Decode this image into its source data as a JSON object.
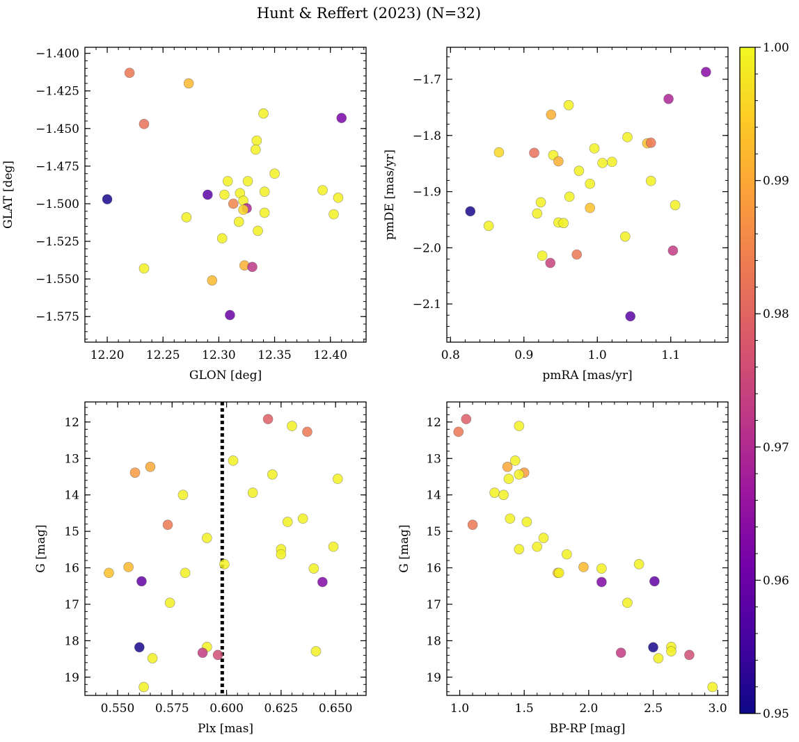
{
  "chart_data": {
    "title": "Hunt & Reffert (2023) (N=32)",
    "colorbar": {
      "min": 0.95,
      "max": 1.0,
      "ticks": [
        0.95,
        0.96,
        0.97,
        0.98,
        0.99,
        1.0
      ],
      "tick_labels": [
        "0.95",
        "0.96",
        "0.97",
        "0.98",
        "0.99",
        "1.00"
      ],
      "colormap": "plasma",
      "stops": [
        "#0d0887",
        "#46039f",
        "#7201a8",
        "#9c179e",
        "#bd3786",
        "#d8576b",
        "#ed7953",
        "#fb9f3a",
        "#fdca26",
        "#f0f921"
      ]
    },
    "panels": [
      {
        "type": "scatter",
        "xlabel": "GLON [deg]",
        "ylabel": "GLAT [deg]",
        "xlim": [
          12.18,
          12.432
        ],
        "ylim": [
          -1.592,
          -1.396
        ],
        "xticks": [
          12.2,
          12.25,
          12.3,
          12.35,
          12.4
        ],
        "xtick_labels": [
          "12.20",
          "12.25",
          "12.30",
          "12.35",
          "12.40"
        ],
        "yticks": [
          -1.4,
          -1.425,
          -1.45,
          -1.475,
          -1.5,
          -1.525,
          -1.55,
          -1.575
        ],
        "ytick_labels": [
          "−1.400",
          "−1.425",
          "−1.450",
          "−1.475",
          "−1.500",
          "−1.525",
          "−1.550",
          "−1.575"
        ],
        "invert_y": false,
        "points": [
          {
            "x": 12.22,
            "y": -1.413,
            "c": 0.983
          },
          {
            "x": 12.273,
            "y": -1.42,
            "c": 0.992
          },
          {
            "x": 12.233,
            "y": -1.447,
            "c": 0.982
          },
          {
            "x": 12.41,
            "y": -1.443,
            "c": 0.962
          },
          {
            "x": 12.34,
            "y": -1.44,
            "c": 0.999
          },
          {
            "x": 12.334,
            "y": -1.458,
            "c": 0.999
          },
          {
            "x": 12.333,
            "y": -1.464,
            "c": 0.999
          },
          {
            "x": 12.2,
            "y": -1.497,
            "c": 0.951
          },
          {
            "x": 12.29,
            "y": -1.494,
            "c": 0.958
          },
          {
            "x": 12.308,
            "y": -1.485,
            "c": 0.999
          },
          {
            "x": 12.326,
            "y": -1.485,
            "c": 0.999
          },
          {
            "x": 12.35,
            "y": -1.48,
            "c": 0.999
          },
          {
            "x": 12.305,
            "y": -1.494,
            "c": 0.999
          },
          {
            "x": 12.319,
            "y": -1.493,
            "c": 0.999
          },
          {
            "x": 12.341,
            "y": -1.492,
            "c": 0.999
          },
          {
            "x": 12.393,
            "y": -1.491,
            "c": 0.999
          },
          {
            "x": 12.407,
            "y": -1.496,
            "c": 0.999
          },
          {
            "x": 12.322,
            "y": -1.498,
            "c": 0.999
          },
          {
            "x": 12.313,
            "y": -1.5,
            "c": 0.985
          },
          {
            "x": 12.325,
            "y": -1.503,
            "c": 0.969
          },
          {
            "x": 12.322,
            "y": -1.504,
            "c": 0.996
          },
          {
            "x": 12.341,
            "y": -1.506,
            "c": 0.999
          },
          {
            "x": 12.403,
            "y": -1.507,
            "c": 0.999
          },
          {
            "x": 12.271,
            "y": -1.509,
            "c": 0.999
          },
          {
            "x": 12.318,
            "y": -1.512,
            "c": 0.999
          },
          {
            "x": 12.335,
            "y": -1.518,
            "c": 0.999
          },
          {
            "x": 12.303,
            "y": -1.523,
            "c": 0.999
          },
          {
            "x": 12.323,
            "y": -1.541,
            "c": 0.991
          },
          {
            "x": 12.33,
            "y": -1.542,
            "c": 0.972
          },
          {
            "x": 12.233,
            "y": -1.543,
            "c": 0.999
          },
          {
            "x": 12.294,
            "y": -1.551,
            "c": 0.992
          },
          {
            "x": 12.31,
            "y": -1.574,
            "c": 0.96
          }
        ]
      },
      {
        "type": "scatter",
        "xlabel": "pmRA [mas/yr]",
        "ylabel": "pmDE [mas/yr]",
        "xlim": [
          0.795,
          1.178
        ],
        "ylim": [
          -2.168,
          -1.643
        ],
        "xticks": [
          0.8,
          0.9,
          1.0,
          1.1
        ],
        "xtick_labels": [
          "0.8",
          "0.9",
          "1.0",
          "1.1"
        ],
        "yticks": [
          -1.7,
          -1.8,
          -1.9,
          -2.0,
          -2.1
        ],
        "ytick_labels": [
          "−1.7",
          "−1.8",
          "−1.9",
          "−2.0",
          "−2.1"
        ],
        "invert_y": false,
        "points": [
          {
            "x": 1.148,
            "y": -1.687,
            "c": 0.964
          },
          {
            "x": 1.097,
            "y": -1.735,
            "c": 0.969
          },
          {
            "x": 0.961,
            "y": -1.746,
            "c": 0.999
          },
          {
            "x": 0.937,
            "y": -1.763,
            "c": 0.991
          },
          {
            "x": 1.041,
            "y": -1.803,
            "c": 0.999
          },
          {
            "x": 1.068,
            "y": -1.814,
            "c": 0.993
          },
          {
            "x": 1.073,
            "y": -1.813,
            "c": 0.983
          },
          {
            "x": 0.866,
            "y": -1.83,
            "c": 0.996
          },
          {
            "x": 0.914,
            "y": -1.831,
            "c": 0.982
          },
          {
            "x": 0.94,
            "y": -1.835,
            "c": 0.999
          },
          {
            "x": 0.996,
            "y": -1.823,
            "c": 0.999
          },
          {
            "x": 0.947,
            "y": -1.846,
            "c": 0.991
          },
          {
            "x": 1.007,
            "y": -1.849,
            "c": 0.999
          },
          {
            "x": 1.02,
            "y": -1.847,
            "c": 0.999
          },
          {
            "x": 0.975,
            "y": -1.863,
            "c": 0.999
          },
          {
            "x": 1.073,
            "y": -1.881,
            "c": 0.999
          },
          {
            "x": 0.99,
            "y": -1.886,
            "c": 0.999
          },
          {
            "x": 0.962,
            "y": -1.909,
            "c": 0.999
          },
          {
            "x": 0.923,
            "y": -1.919,
            "c": 0.999
          },
          {
            "x": 1.106,
            "y": -1.924,
            "c": 0.999
          },
          {
            "x": 0.99,
            "y": -1.929,
            "c": 0.993
          },
          {
            "x": 0.827,
            "y": -1.935,
            "c": 0.951
          },
          {
            "x": 0.918,
            "y": -1.939,
            "c": 0.999
          },
          {
            "x": 0.947,
            "y": -1.955,
            "c": 0.999
          },
          {
            "x": 0.954,
            "y": -1.956,
            "c": 0.999
          },
          {
            "x": 0.852,
            "y": -1.961,
            "c": 0.999
          },
          {
            "x": 1.038,
            "y": -1.98,
            "c": 0.999
          },
          {
            "x": 1.103,
            "y": -2.005,
            "c": 0.973
          },
          {
            "x": 0.925,
            "y": -2.014,
            "c": 0.999
          },
          {
            "x": 0.972,
            "y": -2.012,
            "c": 0.983
          },
          {
            "x": 0.936,
            "y": -2.027,
            "c": 0.974
          },
          {
            "x": 1.045,
            "y": -2.122,
            "c": 0.958
          }
        ]
      },
      {
        "type": "scatter",
        "xlabel": "Plx [mas]",
        "ylabel": "G [mag]",
        "xlim": [
          0.535,
          0.664
        ],
        "ylim": [
          19.5,
          11.45
        ],
        "xticks": [
          0.55,
          0.575,
          0.6,
          0.625,
          0.65
        ],
        "xtick_labels": [
          "0.550",
          "0.575",
          "0.600",
          "0.625",
          "0.650"
        ],
        "yticks": [
          12,
          13,
          14,
          15,
          16,
          17,
          18,
          19
        ],
        "ytick_labels": [
          "12",
          "13",
          "14",
          "15",
          "16",
          "17",
          "18",
          "19"
        ],
        "invert_y": true,
        "vline": {
          "x": 0.598,
          "style": "dotted",
          "color": "#000000"
        },
        "points": [
          {
            "x": 0.619,
            "y": 11.92,
            "c": 0.979
          },
          {
            "x": 0.63,
            "y": 12.11,
            "c": 0.999
          },
          {
            "x": 0.637,
            "y": 12.27,
            "c": 0.983
          },
          {
            "x": 0.603,
            "y": 13.06,
            "c": 0.999
          },
          {
            "x": 0.565,
            "y": 13.23,
            "c": 0.99
          },
          {
            "x": 0.558,
            "y": 13.39,
            "c": 0.988
          },
          {
            "x": 0.621,
            "y": 13.44,
            "c": 0.999
          },
          {
            "x": 0.651,
            "y": 13.56,
            "c": 0.999
          },
          {
            "x": 0.612,
            "y": 13.94,
            "c": 0.999
          },
          {
            "x": 0.58,
            "y": 14.0,
            "c": 0.999
          },
          {
            "x": 0.635,
            "y": 14.65,
            "c": 0.999
          },
          {
            "x": 0.628,
            "y": 14.74,
            "c": 0.999
          },
          {
            "x": 0.573,
            "y": 14.82,
            "c": 0.983
          },
          {
            "x": 0.591,
            "y": 15.18,
            "c": 0.999
          },
          {
            "x": 0.649,
            "y": 15.42,
            "c": 0.999
          },
          {
            "x": 0.625,
            "y": 15.49,
            "c": 0.999
          },
          {
            "x": 0.625,
            "y": 15.63,
            "c": 0.999
          },
          {
            "x": 0.599,
            "y": 15.9,
            "c": 0.999
          },
          {
            "x": 0.555,
            "y": 15.98,
            "c": 0.992
          },
          {
            "x": 0.64,
            "y": 16.02,
            "c": 0.999
          },
          {
            "x": 0.546,
            "y": 16.14,
            "c": 0.993
          },
          {
            "x": 0.581,
            "y": 16.14,
            "c": 0.999
          },
          {
            "x": 0.561,
            "y": 16.37,
            "c": 0.959
          },
          {
            "x": 0.644,
            "y": 16.39,
            "c": 0.963
          },
          {
            "x": 0.574,
            "y": 16.96,
            "c": 0.999
          },
          {
            "x": 0.56,
            "y": 18.18,
            "c": 0.951
          },
          {
            "x": 0.591,
            "y": 18.17,
            "c": 0.999
          },
          {
            "x": 0.641,
            "y": 18.29,
            "c": 0.999
          },
          {
            "x": 0.589,
            "y": 18.33,
            "c": 0.973
          },
          {
            "x": 0.596,
            "y": 18.39,
            "c": 0.976
          },
          {
            "x": 0.566,
            "y": 18.48,
            "c": 0.999
          },
          {
            "x": 0.562,
            "y": 19.27,
            "c": 0.999
          }
        ]
      },
      {
        "type": "scatter",
        "xlabel": "BP-RP [mag]",
        "ylabel": "G [mag]",
        "xlim": [
          0.9,
          3.08
        ],
        "ylim": [
          19.5,
          11.45
        ],
        "xticks": [
          1.0,
          1.5,
          2.0,
          2.5,
          3.0
        ],
        "xtick_labels": [
          "1.0",
          "1.5",
          "2.0",
          "2.5",
          "3.0"
        ],
        "yticks": [
          12,
          13,
          14,
          15,
          16,
          17,
          18,
          19
        ],
        "ytick_labels": [
          "12",
          "13",
          "14",
          "15",
          "16",
          "17",
          "18",
          "19"
        ],
        "invert_y": true,
        "points": [
          {
            "x": 1.05,
            "y": 11.92,
            "c": 0.979
          },
          {
            "x": 1.46,
            "y": 12.11,
            "c": 0.999
          },
          {
            "x": 0.99,
            "y": 12.27,
            "c": 0.983
          },
          {
            "x": 1.43,
            "y": 13.06,
            "c": 0.999
          },
          {
            "x": 1.37,
            "y": 13.23,
            "c": 0.99
          },
          {
            "x": 1.5,
            "y": 13.39,
            "c": 0.988
          },
          {
            "x": 1.46,
            "y": 13.44,
            "c": 0.999
          },
          {
            "x": 1.38,
            "y": 13.56,
            "c": 0.999
          },
          {
            "x": 1.27,
            "y": 13.94,
            "c": 0.999
          },
          {
            "x": 1.34,
            "y": 14.0,
            "c": 0.999
          },
          {
            "x": 1.39,
            "y": 14.65,
            "c": 0.999
          },
          {
            "x": 1.52,
            "y": 14.74,
            "c": 0.999
          },
          {
            "x": 1.1,
            "y": 14.82,
            "c": 0.983
          },
          {
            "x": 1.65,
            "y": 15.18,
            "c": 0.999
          },
          {
            "x": 1.6,
            "y": 15.42,
            "c": 0.999
          },
          {
            "x": 1.46,
            "y": 15.49,
            "c": 0.999
          },
          {
            "x": 1.83,
            "y": 15.63,
            "c": 0.999
          },
          {
            "x": 2.39,
            "y": 15.9,
            "c": 0.999
          },
          {
            "x": 1.96,
            "y": 15.98,
            "c": 0.992
          },
          {
            "x": 2.1,
            "y": 16.02,
            "c": 0.999
          },
          {
            "x": 1.76,
            "y": 16.14,
            "c": 0.993
          },
          {
            "x": 1.77,
            "y": 16.14,
            "c": 0.999
          },
          {
            "x": 2.51,
            "y": 16.37,
            "c": 0.959
          },
          {
            "x": 2.1,
            "y": 16.39,
            "c": 0.963
          },
          {
            "x": 2.3,
            "y": 16.96,
            "c": 0.999
          },
          {
            "x": 2.5,
            "y": 18.18,
            "c": 0.951
          },
          {
            "x": 2.64,
            "y": 18.17,
            "c": 0.999
          },
          {
            "x": 2.64,
            "y": 18.29,
            "c": 0.999
          },
          {
            "x": 2.25,
            "y": 18.33,
            "c": 0.973
          },
          {
            "x": 2.78,
            "y": 18.39,
            "c": 0.976
          },
          {
            "x": 2.54,
            "y": 18.48,
            "c": 0.999
          },
          {
            "x": 2.96,
            "y": 19.27,
            "c": 0.999
          }
        ]
      }
    ]
  }
}
